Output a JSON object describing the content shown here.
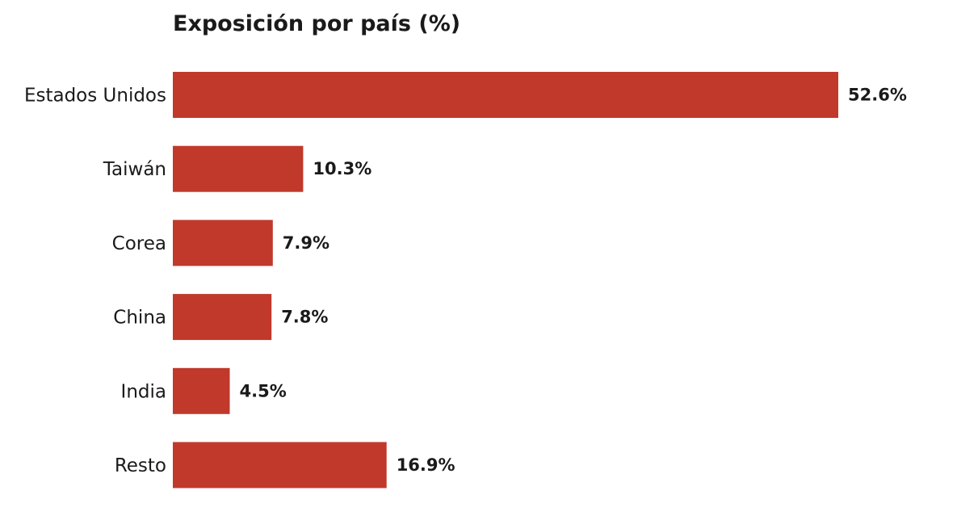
{
  "chart_data": {
    "type": "bar",
    "orientation": "horizontal",
    "title": "Exposición por país (%)",
    "xlabel": "",
    "ylabel": "",
    "categories": [
      "Estados Unidos",
      "Taiwán",
      "Corea",
      "China",
      "India",
      "Resto"
    ],
    "values": [
      52.6,
      10.3,
      7.9,
      7.8,
      4.5,
      16.9
    ],
    "value_labels": [
      "52.6%",
      "10.3%",
      "7.9%",
      "7.8%",
      "4.5%",
      "16.9%"
    ],
    "xlim": [
      0,
      60
    ],
    "grid": false,
    "legend": "none",
    "bar_color": "#c0392b"
  }
}
